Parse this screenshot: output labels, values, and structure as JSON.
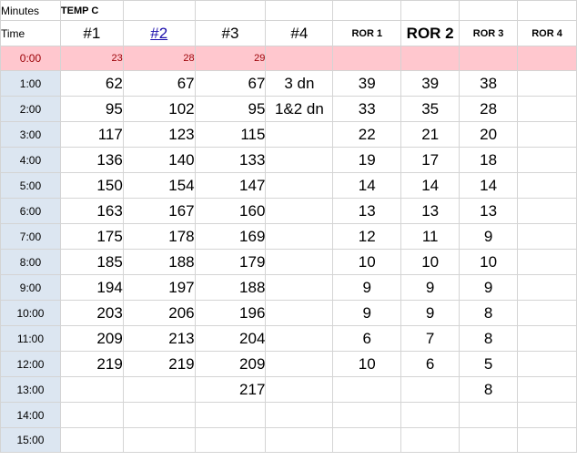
{
  "header": {
    "minutes_label": "Minutes",
    "temp_label": "TEMP C",
    "time_label": "Time",
    "columns": [
      "#1",
      "#2",
      "#3",
      "#4",
      "ROR 1",
      "ROR 2",
      "ROR 3",
      "ROR 4"
    ]
  },
  "start_row": {
    "time": "0:00",
    "c1": "23",
    "c2": "28",
    "c3": "29"
  },
  "rows": [
    {
      "time": "1:00",
      "c1": "62",
      "c2": "67",
      "c3": "67",
      "c4": "3 dn",
      "r1": "39",
      "r2": "39",
      "r3": "38",
      "r4": ""
    },
    {
      "time": "2:00",
      "c1": "95",
      "c2": "102",
      "c3": "95",
      "c4": "1&2 dn",
      "r1": "33",
      "r2": "35",
      "r3": "28",
      "r4": ""
    },
    {
      "time": "3:00",
      "c1": "117",
      "c2": "123",
      "c3": "115",
      "c4": "",
      "r1": "22",
      "r2": "21",
      "r3": "20",
      "r4": ""
    },
    {
      "time": "4:00",
      "c1": "136",
      "c2": "140",
      "c3": "133",
      "c4": "",
      "r1": "19",
      "r2": "17",
      "r3": "18",
      "r4": ""
    },
    {
      "time": "5:00",
      "c1": "150",
      "c2": "154",
      "c3": "147",
      "c4": "",
      "r1": "14",
      "r2": "14",
      "r3": "14",
      "r4": ""
    },
    {
      "time": "6:00",
      "c1": "163",
      "c2": "167",
      "c3": "160",
      "c4": "",
      "r1": "13",
      "r2": "13",
      "r3": "13",
      "r4": ""
    },
    {
      "time": "7:00",
      "c1": "175",
      "c2": "178",
      "c3": "169",
      "c4": "",
      "r1": "12",
      "r2": "11",
      "r3": "9",
      "r4": ""
    },
    {
      "time": "8:00",
      "c1": "185",
      "c2": "188",
      "c3": "179",
      "c4": "",
      "r1": "10",
      "r2": "10",
      "r3": "10",
      "r4": ""
    },
    {
      "time": "9:00",
      "c1": "194",
      "c2": "197",
      "c3": "188",
      "c4": "",
      "r1": "9",
      "r2": "9",
      "r3": "9",
      "r4": ""
    },
    {
      "time": "10:00",
      "c1": "203",
      "c2": "206",
      "c3": "196",
      "c4": "",
      "r1": "9",
      "r2": "9",
      "r3": "8",
      "r4": ""
    },
    {
      "time": "11:00",
      "c1": "209",
      "c2": "213",
      "c3": "204",
      "c4": "",
      "r1": "6",
      "r2": "7",
      "r3": "8",
      "r4": ""
    },
    {
      "time": "12:00",
      "c1": "219",
      "c2": "219",
      "c3": "209",
      "c4": "",
      "r1": "10",
      "r2": "6",
      "r3": "5",
      "r4": ""
    },
    {
      "time": "13:00",
      "c1": "",
      "c2": "",
      "c3": "217",
      "c4": "",
      "r1": "",
      "r2": "",
      "r3": "8",
      "r4": ""
    },
    {
      "time": "14:00",
      "c1": "",
      "c2": "",
      "c3": "",
      "c4": "",
      "r1": "",
      "r2": "",
      "r3": "",
      "r4": ""
    },
    {
      "time": "15:00",
      "c1": "",
      "c2": "",
      "c3": "",
      "c4": "",
      "r1": "",
      "r2": "",
      "r3": "",
      "r4": ""
    }
  ],
  "colors": {
    "time_column_bg": "#dce6f1",
    "start_row_bg": "#ffc7ce",
    "start_row_text": "#9c0006",
    "link_color": "#1a0dab",
    "gridline": "#d4d4d4"
  }
}
